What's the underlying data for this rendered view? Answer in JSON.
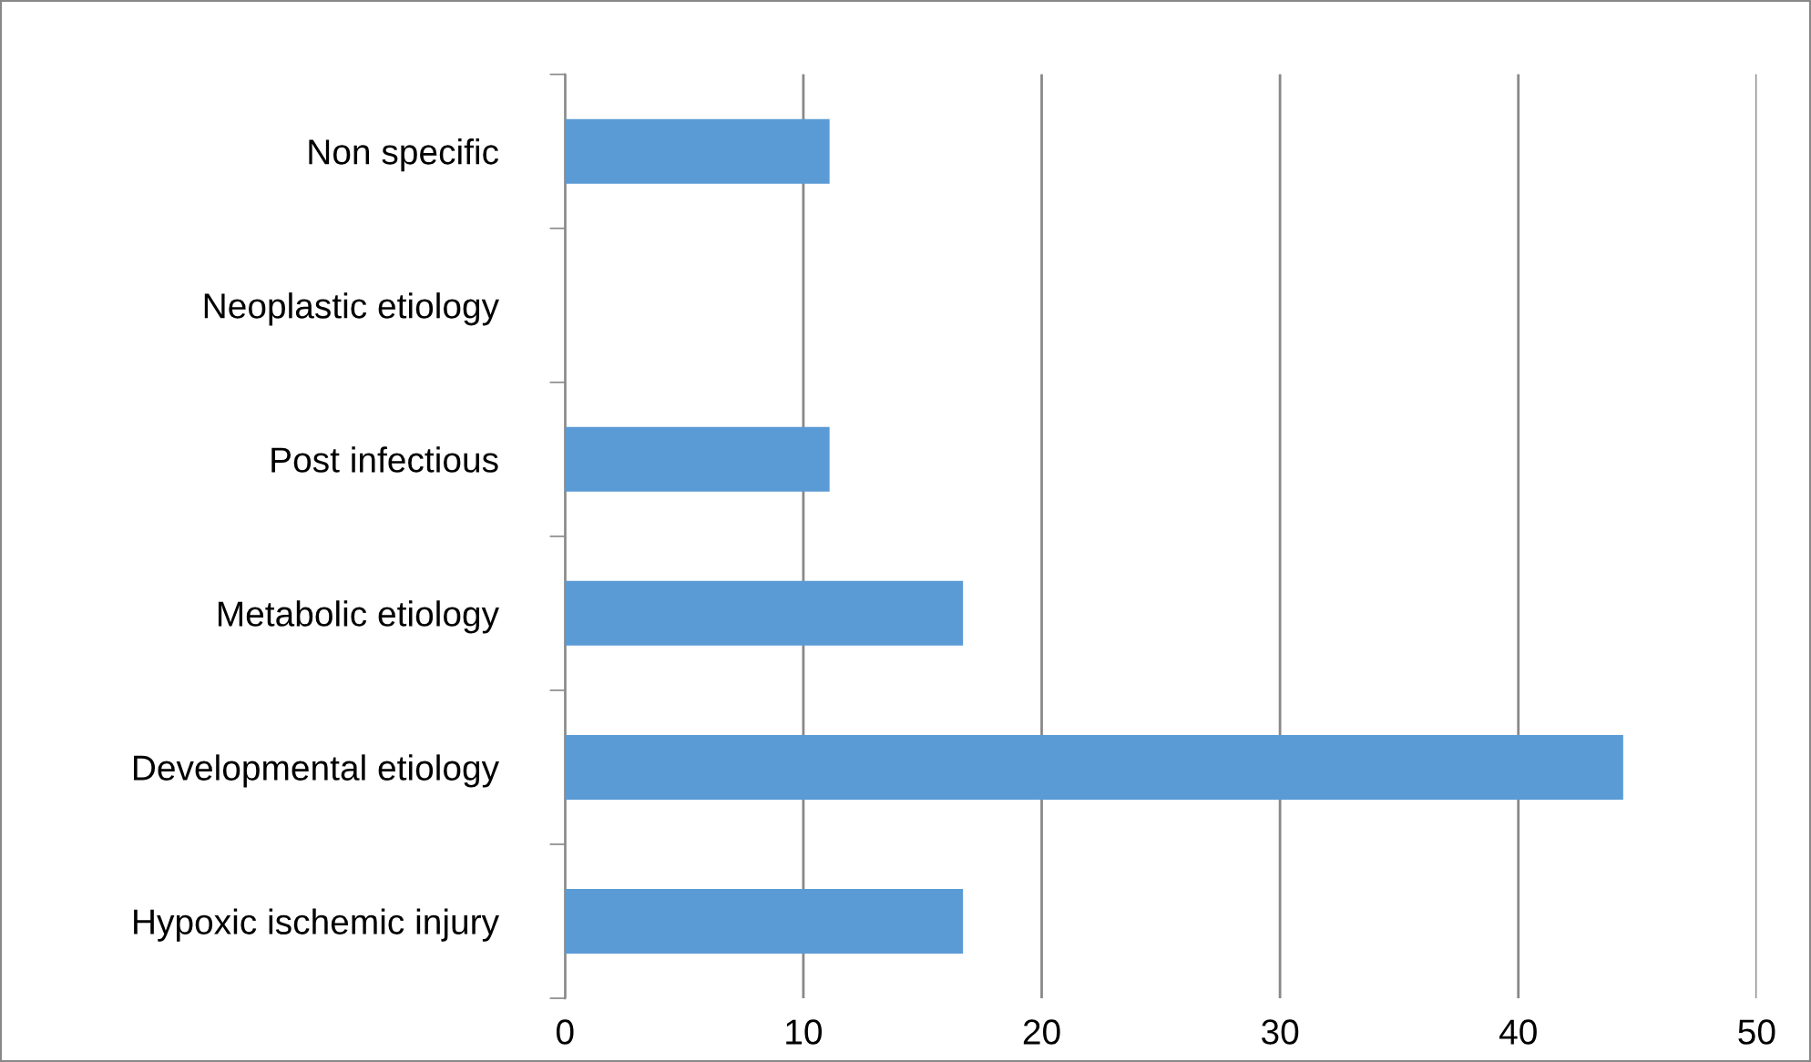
{
  "chart_data": {
    "type": "bar",
    "orientation": "horizontal",
    "categories": [
      "Non specific",
      "Neoplastic etiology",
      "Post infectious",
      "Metabolic etiology",
      "Developmental etiology",
      "Hypoxic ischemic injury"
    ],
    "values": [
      11.1,
      0,
      11.1,
      16.7,
      44.4,
      16.7
    ],
    "color": "#5b9bd5",
    "xlim": [
      0,
      50
    ],
    "xticks": [
      0,
      10,
      20,
      30,
      40,
      50
    ],
    "grid": "x"
  }
}
